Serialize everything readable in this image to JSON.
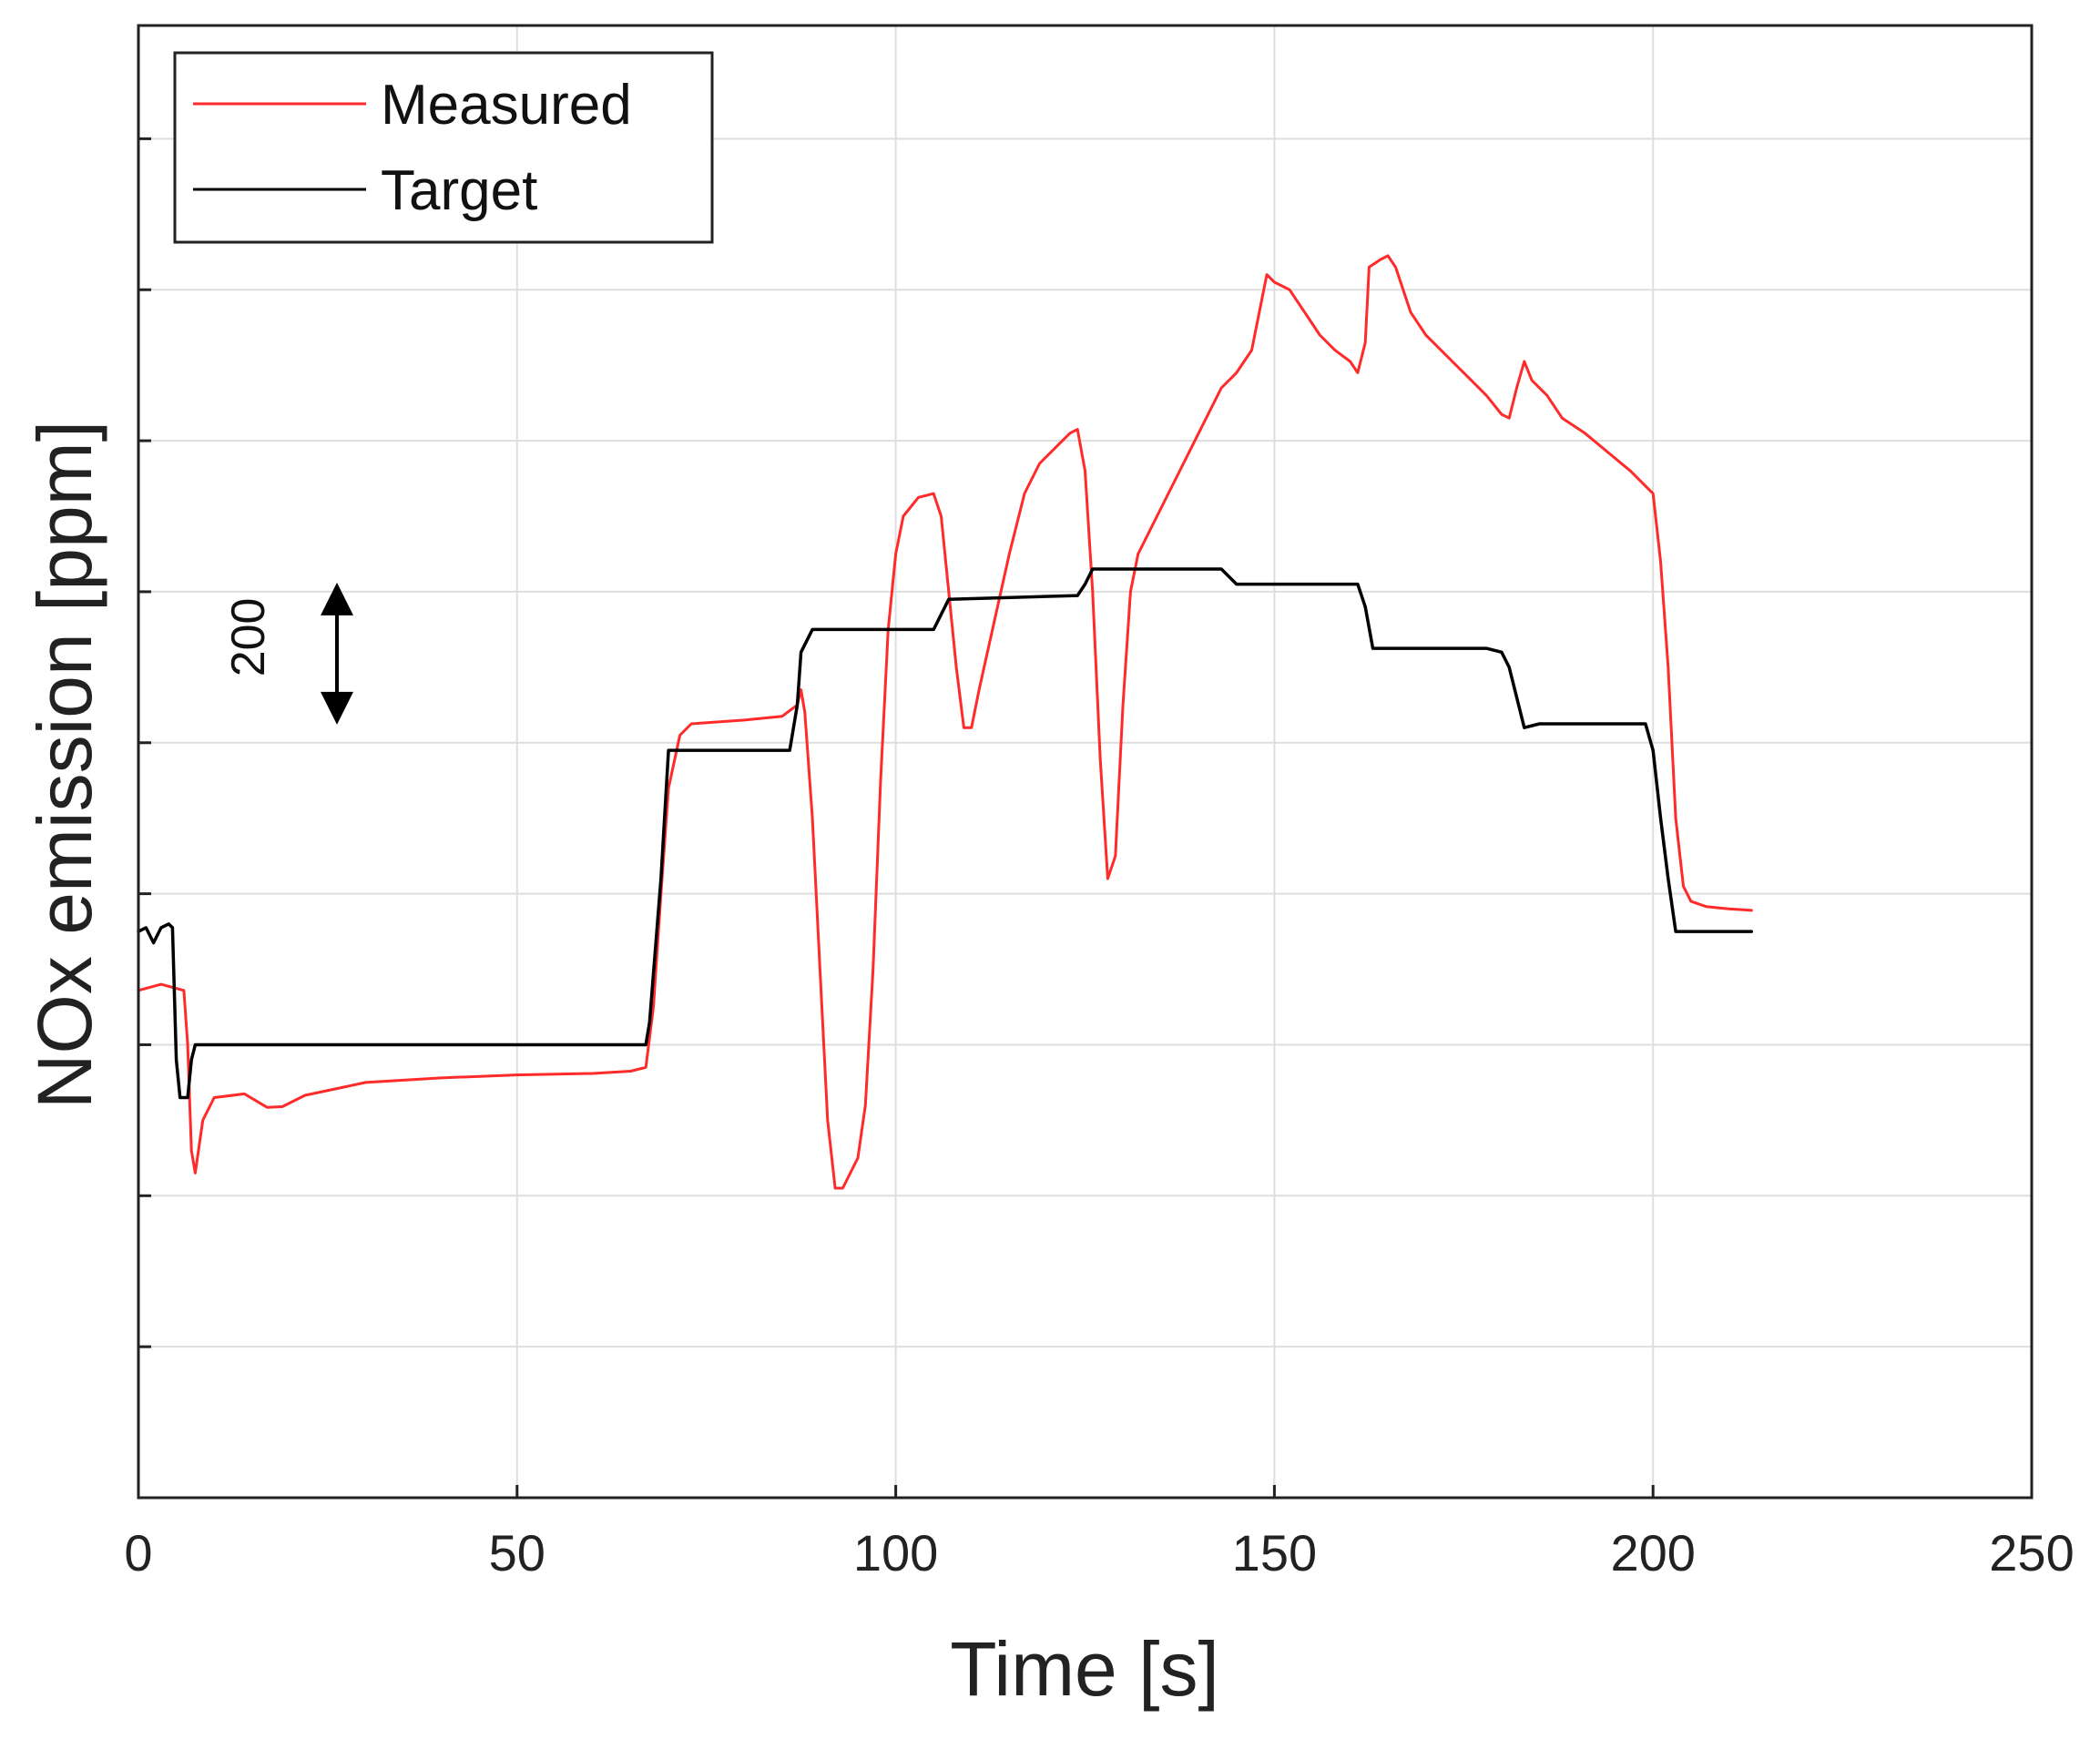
{
  "chart_data": {
    "type": "line",
    "title": "",
    "xlabel": "Time [s]",
    "ylabel": "NOx emission [ppm]",
    "xlim": [
      0,
      250
    ],
    "ylim": [
      -200,
      1750
    ],
    "y_tick_labels_shown": false,
    "x_ticks": [
      "0",
      "50",
      "100",
      "150",
      "200",
      "250"
    ],
    "grid": true,
    "legend_position": "top-left",
    "scale_annotation": {
      "label": "200",
      "span_ppm": 200
    },
    "series": [
      {
        "name": "Measured",
        "color": "#ff2a2a",
        "points": [
          [
            0,
            472
          ],
          [
            3,
            480
          ],
          [
            6,
            472
          ],
          [
            6.5,
            400
          ],
          [
            7,
            260
          ],
          [
            7.5,
            230
          ],
          [
            8.5,
            300
          ],
          [
            10,
            330
          ],
          [
            14,
            335
          ],
          [
            17,
            317
          ],
          [
            19,
            318
          ],
          [
            22,
            333
          ],
          [
            30,
            350
          ],
          [
            40,
            356
          ],
          [
            50,
            360
          ],
          [
            60,
            362
          ],
          [
            65,
            365
          ],
          [
            67,
            370
          ],
          [
            68,
            450
          ],
          [
            69,
            600
          ],
          [
            70,
            740
          ],
          [
            71.5,
            810
          ],
          [
            73,
            825
          ],
          [
            80,
            830
          ],
          [
            85,
            835
          ],
          [
            87,
            850
          ],
          [
            87.5,
            870
          ],
          [
            88,
            840
          ],
          [
            89,
            700
          ],
          [
            90,
            500
          ],
          [
            91,
            300
          ],
          [
            92,
            210
          ],
          [
            93,
            210
          ],
          [
            95,
            250
          ],
          [
            96,
            320
          ],
          [
            97,
            500
          ],
          [
            98,
            750
          ],
          [
            99,
            950
          ],
          [
            100,
            1050
          ],
          [
            101,
            1100
          ],
          [
            103,
            1125
          ],
          [
            105,
            1130
          ],
          [
            106,
            1100
          ],
          [
            107,
            1000
          ],
          [
            108,
            900
          ],
          [
            109,
            820
          ],
          [
            110,
            820
          ],
          [
            111,
            870
          ],
          [
            113,
            960
          ],
          [
            115,
            1050
          ],
          [
            117,
            1130
          ],
          [
            119,
            1170
          ],
          [
            121,
            1190
          ],
          [
            123,
            1210
          ],
          [
            124,
            1215
          ],
          [
            125,
            1160
          ],
          [
            126,
            1000
          ],
          [
            127,
            780
          ],
          [
            128,
            620
          ],
          [
            129,
            650
          ],
          [
            130,
            850
          ],
          [
            131,
            1000
          ],
          [
            132,
            1050
          ],
          [
            134,
            1090
          ],
          [
            137,
            1150
          ],
          [
            140,
            1210
          ],
          [
            143,
            1270
          ],
          [
            145,
            1290
          ],
          [
            147,
            1320
          ],
          [
            148,
            1370
          ],
          [
            149,
            1420
          ],
          [
            150,
            1410
          ],
          [
            152,
            1400
          ],
          [
            154,
            1370
          ],
          [
            156,
            1340
          ],
          [
            158,
            1320
          ],
          [
            160,
            1305
          ],
          [
            161,
            1290
          ],
          [
            162,
            1330
          ],
          [
            162.5,
            1430
          ],
          [
            164,
            1440
          ],
          [
            165,
            1445
          ],
          [
            166,
            1430
          ],
          [
            168,
            1370
          ],
          [
            170,
            1340
          ],
          [
            173,
            1310
          ],
          [
            176,
            1280
          ],
          [
            178,
            1260
          ],
          [
            180,
            1235
          ],
          [
            181,
            1230
          ],
          [
            182,
            1270
          ],
          [
            183,
            1305
          ],
          [
            184,
            1280
          ],
          [
            186,
            1260
          ],
          [
            188,
            1230
          ],
          [
            191,
            1210
          ],
          [
            194,
            1185
          ],
          [
            197,
            1160
          ],
          [
            199,
            1140
          ],
          [
            200,
            1130
          ],
          [
            201,
            1040
          ],
          [
            202,
            900
          ],
          [
            203,
            700
          ],
          [
            204,
            610
          ],
          [
            205,
            590
          ],
          [
            207,
            583
          ],
          [
            210,
            580
          ],
          [
            213,
            578
          ]
        ]
      },
      {
        "name": "Target",
        "color": "#000000",
        "points": [
          [
            0,
            550
          ],
          [
            1,
            555
          ],
          [
            2,
            535
          ],
          [
            3,
            555
          ],
          [
            4,
            560
          ],
          [
            4.5,
            555
          ],
          [
            5,
            380
          ],
          [
            5.5,
            330
          ],
          [
            6.5,
            330
          ],
          [
            7,
            380
          ],
          [
            7.5,
            400
          ],
          [
            8,
            400
          ],
          [
            40,
            400
          ],
          [
            67,
            400
          ],
          [
            67.5,
            430
          ],
          [
            69,
            620
          ],
          [
            70,
            790
          ],
          [
            86,
            790
          ],
          [
            87,
            850
          ],
          [
            87.5,
            920
          ],
          [
            89,
            950
          ],
          [
            105,
            950
          ],
          [
            107,
            990
          ],
          [
            124,
            995
          ],
          [
            125,
            1010
          ],
          [
            126,
            1030
          ],
          [
            143,
            1030
          ],
          [
            145,
            1010
          ],
          [
            161,
            1010
          ],
          [
            162,
            980
          ],
          [
            163,
            925
          ],
          [
            178,
            925
          ],
          [
            180,
            920
          ],
          [
            181,
            900
          ],
          [
            182,
            860
          ],
          [
            183,
            820
          ],
          [
            185,
            825
          ],
          [
            199,
            825
          ],
          [
            200,
            790
          ],
          [
            201,
            700
          ],
          [
            202,
            620
          ],
          [
            203,
            550
          ],
          [
            204,
            550
          ],
          [
            213,
            550
          ]
        ]
      }
    ]
  }
}
